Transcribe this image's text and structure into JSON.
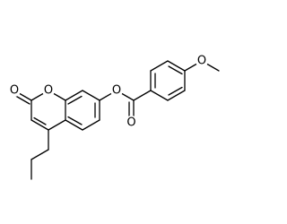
{
  "atoms": [
    "O",
    "O",
    "O",
    "O",
    "O"
  ]
}
